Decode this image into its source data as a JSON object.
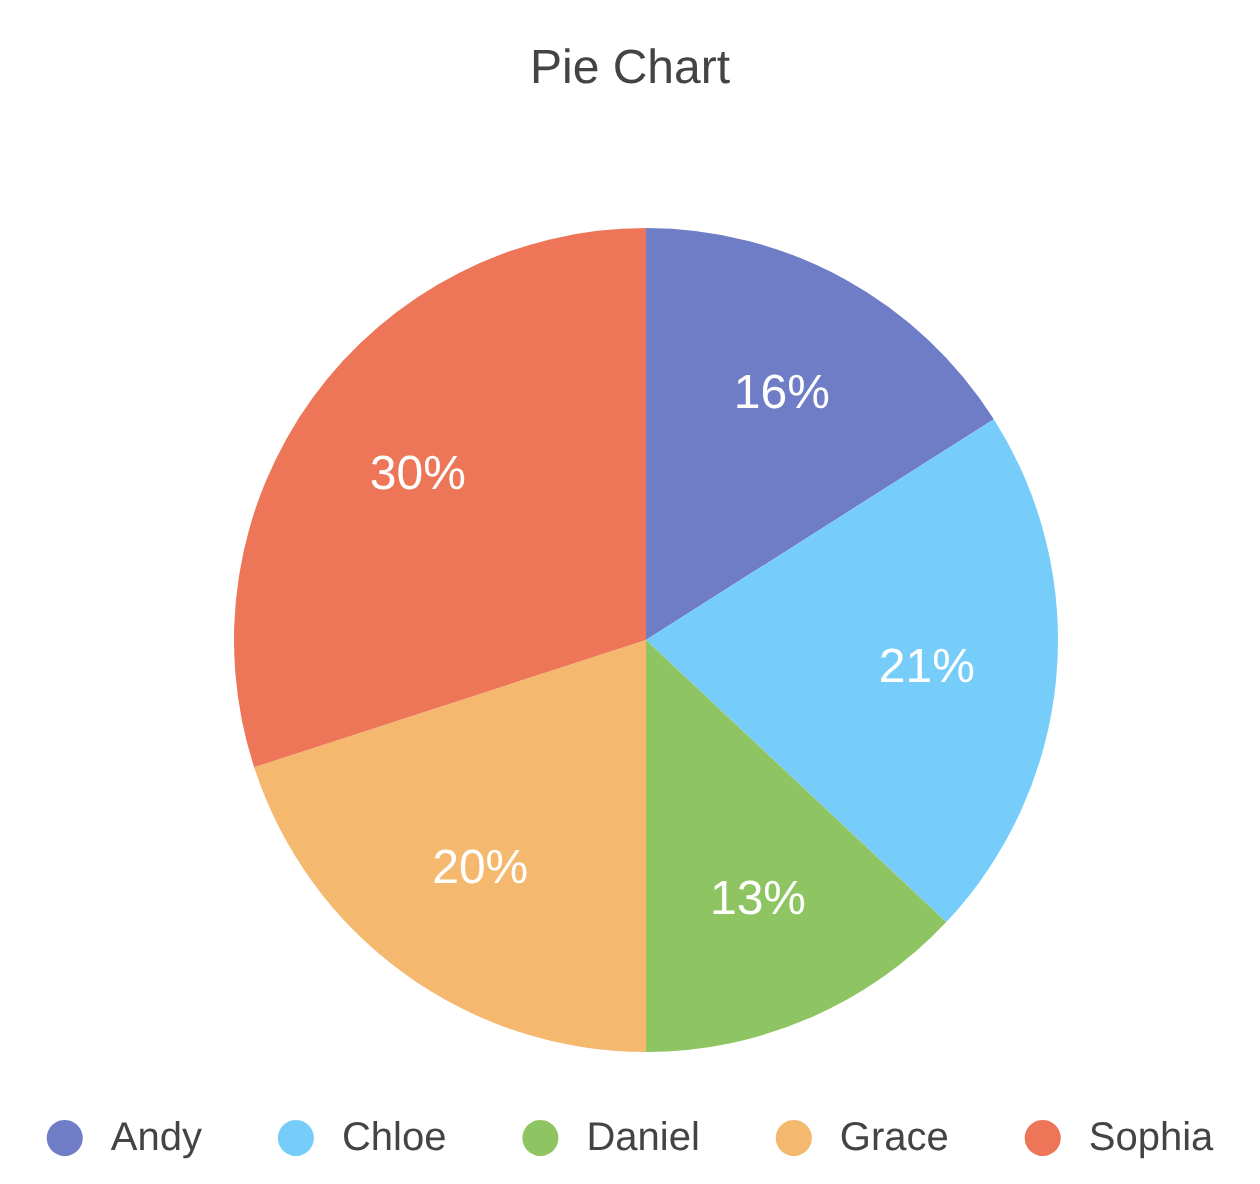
{
  "chart_data": {
    "type": "pie",
    "title": "Pie Chart",
    "categories": [
      "Andy",
      "Chloe",
      "Daniel",
      "Grace",
      "Sophia"
    ],
    "values": [
      16,
      21,
      13,
      20,
      30
    ],
    "colors": [
      "#6f7cc6",
      "#77cdfa",
      "#8ec562",
      "#f4b86e",
      "#ec7657"
    ],
    "value_labels": [
      "16%",
      "21%",
      "13%",
      "20%",
      "30%"
    ],
    "legend": "bottom"
  }
}
